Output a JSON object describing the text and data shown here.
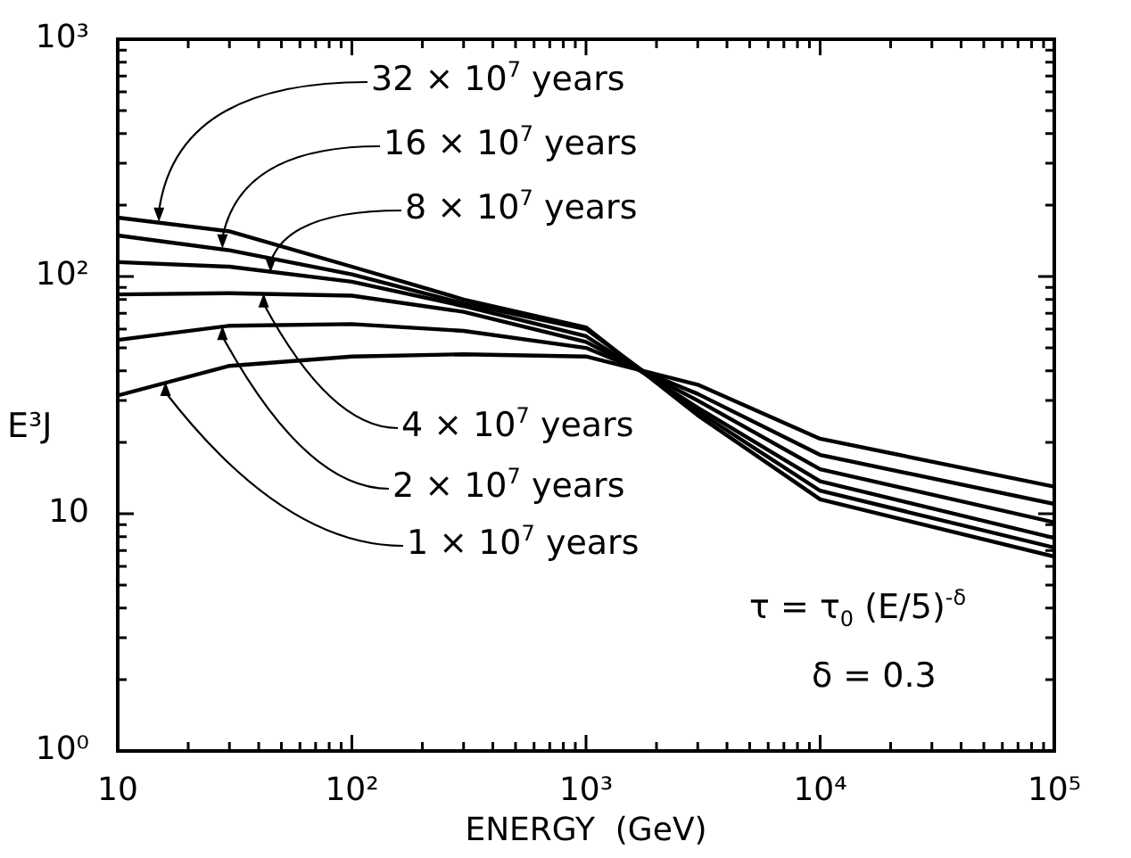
{
  "chart_data": {
    "type": "line",
    "xlabel": "ENERGY  (GeV)",
    "ylabel": "E³J",
    "log": "xy",
    "grid": false,
    "marker": "none",
    "line_style": "solid",
    "x": [
      10,
      30,
      100,
      300,
      1000,
      3000,
      10000,
      100000
    ],
    "xlim": [
      10,
      100000
    ],
    "ylim": [
      1,
      1000
    ],
    "xticks": [
      {
        "value": 10,
        "label": "10"
      },
      {
        "value": 20,
        "label": null
      },
      {
        "value": 30,
        "label": null
      },
      {
        "value": 40,
        "label": null
      },
      {
        "value": 50,
        "label": null
      },
      {
        "value": 60,
        "label": null
      },
      {
        "value": 70,
        "label": null
      },
      {
        "value": 80,
        "label": null
      },
      {
        "value": 90,
        "label": null
      },
      {
        "value": 100,
        "label": "10²"
      },
      {
        "value": 200,
        "label": null
      },
      {
        "value": 300,
        "label": null
      },
      {
        "value": 400,
        "label": null
      },
      {
        "value": 500,
        "label": null
      },
      {
        "value": 600,
        "label": null
      },
      {
        "value": 700,
        "label": null
      },
      {
        "value": 800,
        "label": null
      },
      {
        "value": 900,
        "label": null
      },
      {
        "value": 1000,
        "label": "10³"
      },
      {
        "value": 2000,
        "label": null
      },
      {
        "value": 3000,
        "label": null
      },
      {
        "value": 4000,
        "label": null
      },
      {
        "value": 5000,
        "label": null
      },
      {
        "value": 6000,
        "label": null
      },
      {
        "value": 7000,
        "label": null
      },
      {
        "value": 8000,
        "label": null
      },
      {
        "value": 9000,
        "label": null
      },
      {
        "value": 10000,
        "label": "10⁴"
      },
      {
        "value": 20000,
        "label": null
      },
      {
        "value": 30000,
        "label": null
      },
      {
        "value": 40000,
        "label": null
      },
      {
        "value": 50000,
        "label": null
      },
      {
        "value": 60000,
        "label": null
      },
      {
        "value": 70000,
        "label": null
      },
      {
        "value": 80000,
        "label": null
      },
      {
        "value": 90000,
        "label": null
      },
      {
        "value": 100000,
        "label": "10⁵"
      }
    ],
    "yticks": [
      {
        "value": 1,
        "label": "10⁰"
      },
      {
        "value": 2,
        "label": null
      },
      {
        "value": 3,
        "label": null
      },
      {
        "value": 4,
        "label": null
      },
      {
        "value": 5,
        "label": null
      },
      {
        "value": 6,
        "label": null
      },
      {
        "value": 7,
        "label": null
      },
      {
        "value": 8,
        "label": null
      },
      {
        "value": 9,
        "label": null
      },
      {
        "value": 10,
        "label": "10"
      },
      {
        "value": 20,
        "label": null
      },
      {
        "value": 30,
        "label": null
      },
      {
        "value": 40,
        "label": null
      },
      {
        "value": 50,
        "label": null
      },
      {
        "value": 60,
        "label": null
      },
      {
        "value": 70,
        "label": null
      },
      {
        "value": 80,
        "label": null
      },
      {
        "value": 90,
        "label": null
      },
      {
        "value": 100,
        "label": "10²"
      },
      {
        "value": 200,
        "label": null
      },
      {
        "value": 300,
        "label": null
      },
      {
        "value": 400,
        "label": null
      },
      {
        "value": 500,
        "label": null
      },
      {
        "value": 600,
        "label": null
      },
      {
        "value": 700,
        "label": null
      },
      {
        "value": 800,
        "label": null
      },
      {
        "value": 900,
        "label": null
      },
      {
        "value": 1000,
        "label": "10³"
      }
    ],
    "series": [
      {
        "color": "#000000",
        "values": [
          177,
          155,
          110,
          80,
          61,
          26,
          11.5,
          6.6
        ]
      },
      {
        "color": "#000000",
        "values": [
          149,
          129,
          102,
          77,
          60,
          27,
          12.5,
          7.2
        ]
      },
      {
        "color": "#000000",
        "values": [
          115,
          110,
          95,
          75,
          56,
          28,
          13.7,
          7.9
        ]
      },
      {
        "color": "#000000",
        "values": [
          84,
          85,
          83,
          71,
          53,
          30,
          15.4,
          9.2
        ]
      },
      {
        "color": "#000000",
        "values": [
          54,
          62,
          63,
          59,
          50,
          32,
          17.7,
          11
        ]
      },
      {
        "color": "#000000",
        "values": [
          31.5,
          42,
          46,
          47,
          46,
          35,
          20.7,
          13
        ]
      }
    ],
    "annotations": [
      {
        "text": "32 × 10$^{7}$ years",
        "x": 15,
        "y": 170
      },
      {
        "text": "16 × 10$^{7}$ years",
        "x": 28,
        "y": 131
      },
      {
        "text": "8 × 10$^{7}$ years",
        "x": 45,
        "y": 104
      },
      {
        "text": "4 × 10$^{7}$ years",
        "x": 42,
        "y": 85
      },
      {
        "text": "2 × 10$^{7}$ years",
        "x": 28,
        "y": 62
      },
      {
        "text": "1 × 10$^{7}$ years",
        "x": 16,
        "y": 36
      },
      "τ = τ$_{0}$ (E/5)$^{-δ}$",
      "δ = 0.3"
    ]
  }
}
